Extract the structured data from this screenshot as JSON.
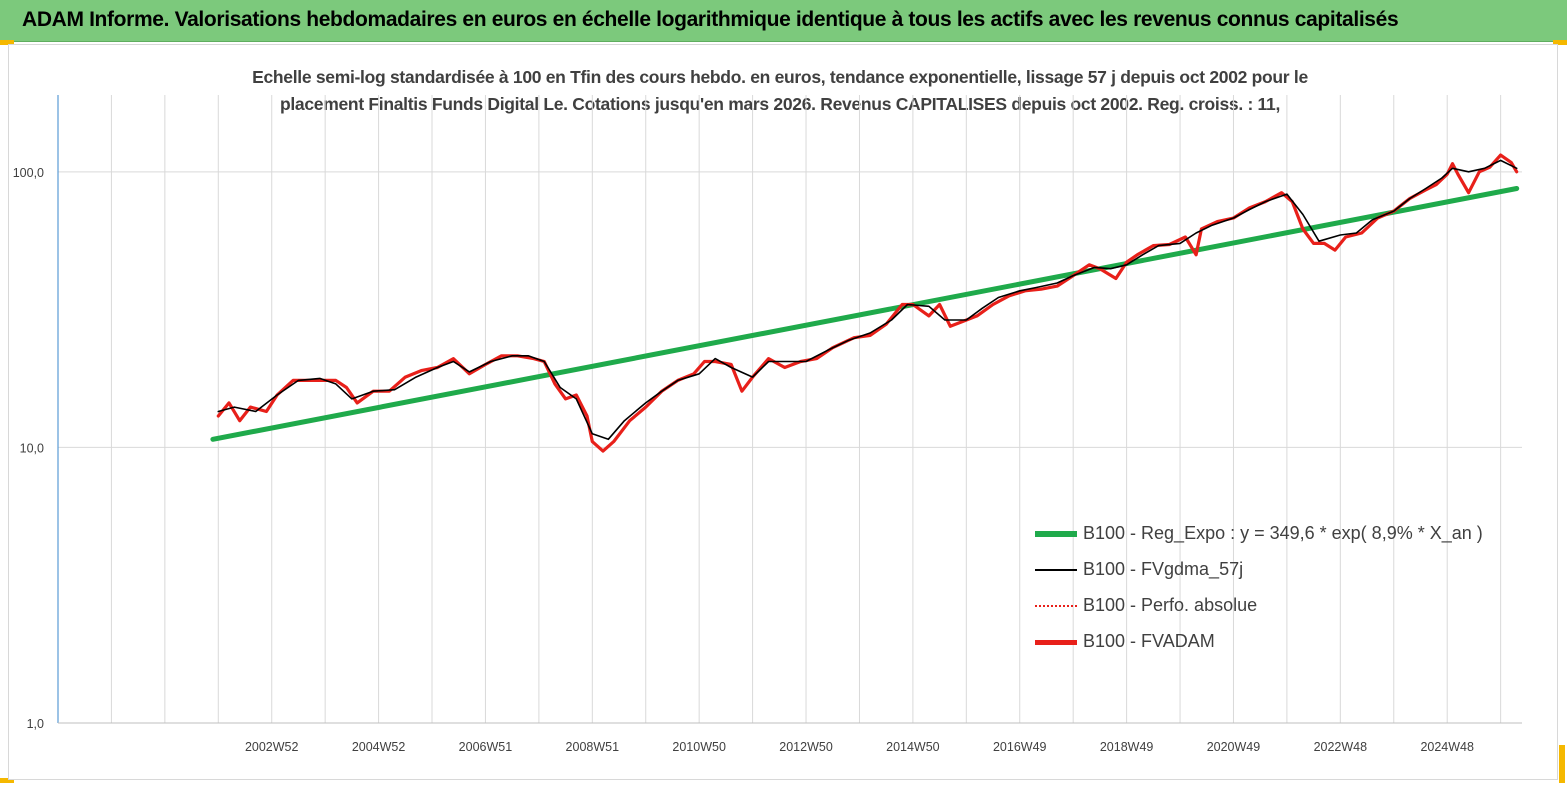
{
  "header": {
    "title": "ADAM Informe. Valorisations hebdomadaires en euros en échelle logarithmique identique à tous les actifs avec les revenus connus capitalisés"
  },
  "colors": {
    "header_bg": "#7cc97c",
    "corner_accent": "#f5b800",
    "reg_expo": "#1faa4b",
    "fvgdma": "#000000",
    "perfo": "#e8201a",
    "fvadam": "#e8201a"
  },
  "chart_data": {
    "type": "line",
    "title_line1": "Echelle semi-log standardisée à 100 en Tfin des cours hebdo. en euros, tendance exponentielle, lissage 57 j depuis oct 2002 pour le",
    "title_line2": "placement Finaltis Funds Digital Le. Cotations jusqu'en mars 2026. Revenus CAPITALISES depuis oct 2002. Reg. croiss. : 11,",
    "y_scale": "log",
    "ylim": [
      1,
      190
    ],
    "y_ticks": [
      {
        "value": 1,
        "label": "1,0"
      },
      {
        "value": 10,
        "label": "10,0"
      },
      {
        "value": 100,
        "label": "100,0"
      }
    ],
    "xlim": [
      1998.9,
      2026.3
    ],
    "x_gridlines": [
      1998.9,
      1999.9,
      2000.9,
      2001.9,
      2002.9,
      2003.9,
      2004.9,
      2005.9,
      2006.9,
      2007.9,
      2008.9,
      2009.9,
      2010.9,
      2011.9,
      2012.9,
      2013.9,
      2014.9,
      2015.9,
      2016.9,
      2017.9,
      2018.9,
      2019.9,
      2020.9,
      2021.9,
      2022.9,
      2023.9,
      2024.9,
      2025.9
    ],
    "x_ticks": [
      {
        "value": 2002.9,
        "label": "2002W52"
      },
      {
        "value": 2004.9,
        "label": "2004W52"
      },
      {
        "value": 2006.9,
        "label": "2006W51"
      },
      {
        "value": 2008.9,
        "label": "2008W51"
      },
      {
        "value": 2010.9,
        "label": "2010W50"
      },
      {
        "value": 2012.9,
        "label": "2012W50"
      },
      {
        "value": 2014.9,
        "label": "2014W50"
      },
      {
        "value": 2016.9,
        "label": "2016W49"
      },
      {
        "value": 2018.9,
        "label": "2018W49"
      },
      {
        "value": 2020.9,
        "label": "2020W49"
      },
      {
        "value": 2022.9,
        "label": "2022W48"
      },
      {
        "value": 2024.9,
        "label": "2024W48"
      }
    ],
    "grid": "vertical",
    "legend_position": "bottom-right",
    "series": [
      {
        "name": "B100 - Reg_Expo : y = 349,6 * exp( 8,9% * X_an )",
        "style": "thick-green",
        "x": [
          2001.8,
          2026.2
        ],
        "y": [
          10.7,
          87
        ]
      },
      {
        "name": "B100 - FVgdma_57j",
        "style": "thin-black",
        "x": [
          2001.9,
          2002.2,
          2002.6,
          2003.0,
          2003.4,
          2003.8,
          2004.1,
          2004.4,
          2004.8,
          2005.2,
          2005.6,
          2006.0,
          2006.3,
          2006.6,
          2007.0,
          2007.4,
          2007.7,
          2008.0,
          2008.3,
          2008.6,
          2008.9,
          2009.2,
          2009.5,
          2009.9,
          2010.2,
          2010.5,
          2010.9,
          2011.2,
          2011.5,
          2011.9,
          2012.2,
          2012.6,
          2012.9,
          2013.3,
          2013.7,
          2014.1,
          2014.5,
          2014.8,
          2015.2,
          2015.5,
          2015.9,
          2016.2,
          2016.5,
          2016.9,
          2017.2,
          2017.6,
          2017.9,
          2018.3,
          2018.6,
          2018.9,
          2019.2,
          2019.5,
          2019.9,
          2020.2,
          2020.5,
          2020.9,
          2021.2,
          2021.5,
          2021.9,
          2022.2,
          2022.5,
          2022.9,
          2023.2,
          2023.5,
          2023.9,
          2024.2,
          2024.5,
          2024.8,
          2025.0,
          2025.3,
          2025.6,
          2025.9,
          2026.2
        ],
        "y": [
          13.5,
          14.0,
          13.5,
          15.5,
          17.5,
          17.8,
          17.0,
          15.0,
          16.0,
          16.2,
          18.0,
          19.5,
          20.5,
          18.8,
          20.5,
          21.5,
          21.5,
          20.5,
          16.5,
          15.0,
          11.2,
          10.7,
          12.5,
          14.5,
          16.0,
          17.5,
          18.5,
          21.0,
          19.5,
          18.0,
          20.5,
          20.5,
          20.5,
          22.5,
          24.5,
          26.0,
          29.0,
          33.0,
          32.5,
          29.0,
          29.0,
          32.0,
          35.0,
          37.0,
          38.0,
          39.5,
          42.0,
          45.0,
          44.5,
          46.0,
          50.0,
          54.0,
          55.0,
          60.0,
          64.0,
          68.0,
          73.0,
          78.0,
          83.0,
          70.0,
          56.0,
          59.0,
          60.0,
          67.0,
          72.0,
          80.0,
          87.0,
          95.0,
          103.0,
          100.0,
          103.0,
          110.0,
          103.0
        ]
      },
      {
        "name": "B100 - Perfo. absolue",
        "style": "dotted-red"
      },
      {
        "name": "B100 - FVADAM",
        "style": "thick-red",
        "x": [
          2001.9,
          2002.1,
          2002.3,
          2002.5,
          2002.8,
          2003.0,
          2003.3,
          2003.6,
          2003.9,
          2004.1,
          2004.3,
          2004.5,
          2004.8,
          2005.1,
          2005.4,
          2005.7,
          2006.0,
          2006.3,
          2006.6,
          2006.9,
          2007.2,
          2007.5,
          2007.8,
          2008.0,
          2008.2,
          2008.4,
          2008.6,
          2008.8,
          2008.9,
          2009.1,
          2009.3,
          2009.6,
          2009.9,
          2010.2,
          2010.5,
          2010.8,
          2011.0,
          2011.2,
          2011.5,
          2011.7,
          2011.9,
          2012.2,
          2012.5,
          2012.8,
          2013.1,
          2013.4,
          2013.8,
          2014.1,
          2014.4,
          2014.7,
          2014.9,
          2015.2,
          2015.4,
          2015.6,
          2015.8,
          2016.1,
          2016.4,
          2016.7,
          2017.0,
          2017.3,
          2017.6,
          2017.9,
          2018.2,
          2018.4,
          2018.7,
          2018.9,
          2019.1,
          2019.4,
          2019.7,
          2020.0,
          2020.2,
          2020.3,
          2020.6,
          2020.9,
          2021.2,
          2021.5,
          2021.8,
          2022.0,
          2022.2,
          2022.4,
          2022.6,
          2022.8,
          2023.0,
          2023.3,
          2023.6,
          2023.9,
          2024.2,
          2024.5,
          2024.7,
          2024.9,
          2025.0,
          2025.1,
          2025.3,
          2025.5,
          2025.7,
          2025.9,
          2026.1,
          2026.2
        ],
        "y": [
          13.0,
          14.5,
          12.5,
          14.0,
          13.5,
          15.5,
          17.5,
          17.5,
          17.5,
          17.5,
          16.5,
          14.5,
          16.0,
          16.0,
          18.0,
          19.0,
          19.5,
          21.0,
          18.5,
          20.0,
          21.5,
          21.5,
          21.0,
          20.5,
          17.0,
          15.0,
          15.5,
          13.0,
          10.5,
          9.7,
          10.5,
          12.5,
          14.0,
          16.0,
          17.5,
          18.5,
          20.5,
          20.5,
          20.0,
          16.0,
          18.0,
          21.0,
          19.5,
          20.5,
          21.0,
          23.0,
          25.0,
          25.5,
          28.0,
          33.0,
          33.0,
          30.0,
          33.0,
          27.5,
          28.5,
          30.0,
          33.0,
          35.5,
          37.0,
          37.5,
          38.5,
          42.0,
          46.0,
          44.5,
          41.0,
          47.0,
          50.0,
          54.0,
          54.5,
          58.0,
          50.0,
          62.0,
          66.0,
          68.0,
          74.0,
          78.0,
          84.0,
          78.0,
          62.0,
          55.0,
          55.0,
          52.0,
          58.0,
          60.0,
          68.0,
          72.0,
          80.0,
          86.0,
          90.0,
          98.0,
          107.0,
          98.0,
          84.0,
          100.0,
          104.0,
          115.0,
          108.0,
          100.0
        ]
      }
    ]
  }
}
